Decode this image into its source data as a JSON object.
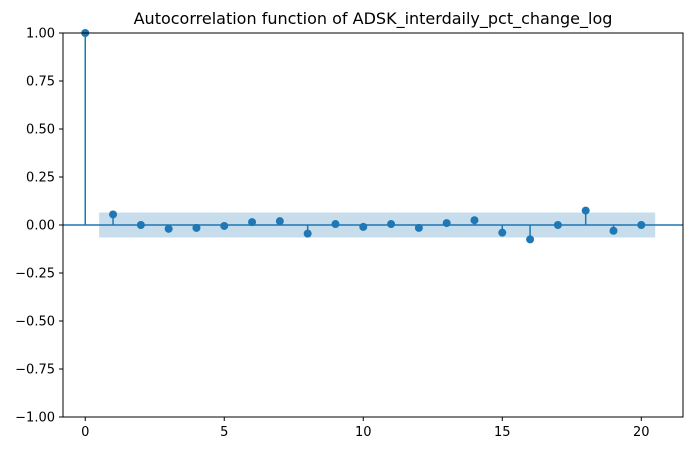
{
  "chart_data": {
    "type": "stem",
    "title": "Autocorrelation function of ADSK_interdaily_pct_change_log",
    "xlabel": "",
    "ylabel": "",
    "xlim": [
      -0.8,
      21.5
    ],
    "ylim": [
      -1.0,
      1.0
    ],
    "x_ticks": [
      0,
      5,
      10,
      15,
      20
    ],
    "y_ticks": [
      -1.0,
      -0.75,
      -0.5,
      -0.25,
      0.0,
      0.25,
      0.5,
      0.75,
      1.0
    ],
    "x_tick_labels": [
      "0",
      "5",
      "10",
      "15",
      "20"
    ],
    "y_tick_labels": [
      "−1.00",
      "−0.75",
      "−0.50",
      "−0.25",
      "0.00",
      "0.25",
      "0.50",
      "0.75",
      "1.00"
    ],
    "lags": [
      0,
      1,
      2,
      3,
      4,
      5,
      6,
      7,
      8,
      9,
      10,
      11,
      12,
      13,
      14,
      15,
      16,
      17,
      18,
      19,
      20
    ],
    "acf": [
      1.0,
      0.055,
      0.0,
      -0.02,
      -0.015,
      -0.005,
      0.015,
      0.02,
      -0.045,
      0.005,
      -0.01,
      0.005,
      -0.015,
      0.01,
      0.025,
      -0.04,
      -0.075,
      0.0,
      0.075,
      -0.03,
      0.0
    ],
    "confidence_band": {
      "lags_range": [
        0.5,
        20.5
      ],
      "upper": 0.065,
      "lower": -0.065
    },
    "grid": false,
    "colors": {
      "stem": "#1f77b4",
      "marker": "#1f77b4",
      "band": "#1f77b4",
      "zero_line": "#1f77b4"
    }
  }
}
